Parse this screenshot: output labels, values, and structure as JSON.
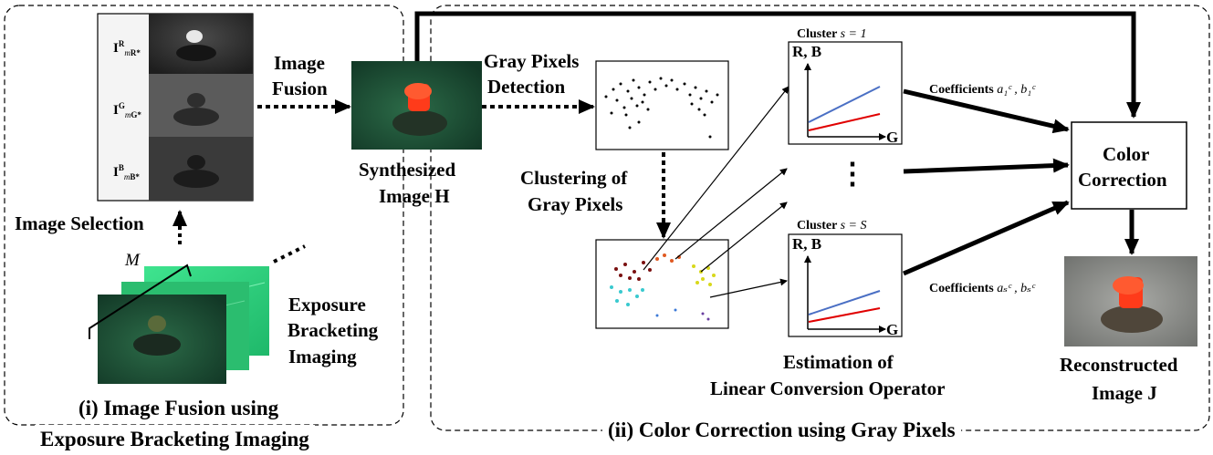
{
  "section1": {
    "title_line1": "(i) Image Fusion using",
    "title_line2": "Exposure Bracketing Imaging"
  },
  "section2": {
    "title": "(ii) Color Correction using Gray Pixels"
  },
  "channels": {
    "r_base": "I",
    "r_sup": "R",
    "r_sub": "m",
    "r_subsup": "R*",
    "g_base": "I",
    "g_sup": "G",
    "g_sub": "m",
    "g_subsup": "G*",
    "b_base": "I",
    "b_sup": "B",
    "b_sub": "m",
    "b_subsup": "B*"
  },
  "labels": {
    "image_selection": "Image Selection",
    "M": "M",
    "exposure_line1": "Exposure",
    "exposure_line2": "Bracketing",
    "exposure_line3": "Imaging",
    "image_fusion_line1": "Image",
    "image_fusion_line2": "Fusion",
    "synth_line1": "Synthesized",
    "synth_line2": "Image",
    "synth_symbol": "H",
    "gray_detect_line1": "Gray Pixels",
    "gray_detect_line2": "Detection",
    "clustering_line1": "Clustering of",
    "clustering_line2": "Gray Pixels",
    "cluster1_prefix": "Cluster",
    "cluster1_var": "s = 1",
    "clusterS_prefix": "Cluster",
    "clusterS_var": "s = S",
    "axis_rb": "R, B",
    "axis_g": "G",
    "dots": "⋮",
    "coef1_prefix": "Coefficients",
    "coef1_math": "a₁ᶜ , b₁ᶜ",
    "coefS_prefix": "Coefficients",
    "coefS_math": "aₛᶜ , bₛᶜ",
    "color_line1": "Color",
    "color_line2": "Correction",
    "estimation_line1": "Estimation of",
    "estimation_line2": "Linear Conversion Operator",
    "recon_line1": "Reconstructed",
    "recon_line2": "Image",
    "recon_symbol": "J"
  },
  "colors": {
    "plot_blue": "#4a6fc4",
    "plot_red": "#e00000",
    "underwater_green": "#1f5a3a",
    "bright_green": "#2fd680",
    "hydrant_red": "#ff3b1a"
  }
}
